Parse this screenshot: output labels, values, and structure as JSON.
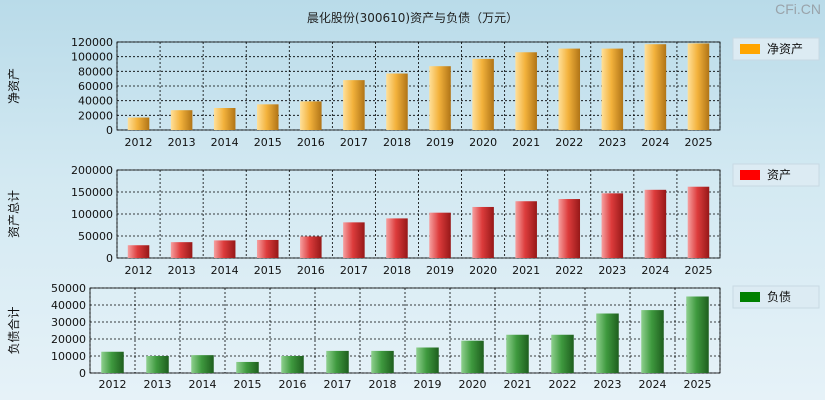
{
  "title": "晨化股份(300610)资产与负债（万元）",
  "watermark": "CFi.CN",
  "chart_data": [
    {
      "type": "bar",
      "name": "net-assets",
      "ylabel": "净资产",
      "legend": "净资产",
      "color_light": "#ffe09a",
      "color_mid": "#f3b23c",
      "color_dark": "#b07416",
      "legend_color": "#ffa500",
      "categories": [
        "2012",
        "2013",
        "2014",
        "2015",
        "2016",
        "2017",
        "2018",
        "2019",
        "2020",
        "2021",
        "2022",
        "2023",
        "2024",
        "2025"
      ],
      "values": [
        17000,
        27000,
        30000,
        35000,
        39000,
        68000,
        77000,
        87000,
        97000,
        106000,
        111000,
        111000,
        117000,
        118000
      ],
      "ylim": [
        0,
        120000
      ],
      "yticks": [
        0,
        20000,
        40000,
        60000,
        80000,
        100000,
        120000
      ]
    },
    {
      "type": "bar",
      "name": "total-assets",
      "ylabel": "资产总计",
      "legend": "资产",
      "color_light": "#f6a0a0",
      "color_mid": "#dd3c3c",
      "color_dark": "#961818",
      "legend_color": "#ff0000",
      "categories": [
        "2012",
        "2013",
        "2014",
        "2015",
        "2016",
        "2017",
        "2018",
        "2019",
        "2020",
        "2021",
        "2022",
        "2023",
        "2024",
        "2025"
      ],
      "values": [
        29000,
        36000,
        40000,
        41000,
        49000,
        81000,
        90000,
        103000,
        116000,
        129000,
        134000,
        147000,
        155000,
        162000
      ],
      "ylim": [
        0,
        200000
      ],
      "yticks": [
        0,
        50000,
        100000,
        150000,
        200000
      ]
    },
    {
      "type": "bar",
      "name": "total-liabilities",
      "ylabel": "负债合计",
      "legend": "负债",
      "color_light": "#8fd08f",
      "color_mid": "#3f9a3f",
      "color_dark": "#1e5e1e",
      "legend_color": "#008000",
      "categories": [
        "2012",
        "2013",
        "2014",
        "2015",
        "2016",
        "2017",
        "2018",
        "2019",
        "2020",
        "2021",
        "2022",
        "2023",
        "2024",
        "2025"
      ],
      "values": [
        12500,
        10000,
        10500,
        6500,
        10000,
        13000,
        13000,
        15000,
        19000,
        22500,
        22500,
        35000,
        37000,
        45000
      ],
      "ylim": [
        0,
        50000
      ],
      "yticks": [
        0,
        10000,
        20000,
        30000,
        40000,
        50000
      ]
    }
  ]
}
